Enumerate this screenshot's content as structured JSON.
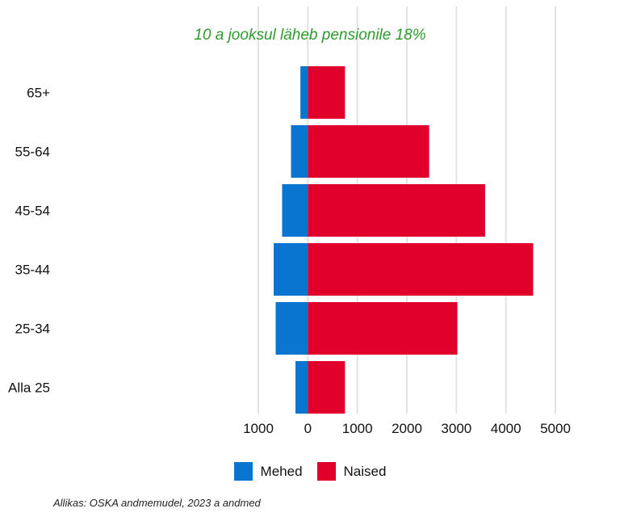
{
  "chart_data": {
    "type": "bar",
    "orientation": "horizontal",
    "subtitle": "10 a jooksul läheb pensionile 18%",
    "categories": [
      "Alla 25",
      "25-34",
      "35-44",
      "45-54",
      "55-64",
      "65+"
    ],
    "series": [
      {
        "name": "Mehed",
        "values": [
          -250,
          -650,
          -690,
          -520,
          -340,
          -150
        ],
        "color": "#0a74d1"
      },
      {
        "name": "Naised",
        "values": [
          750,
          3020,
          4550,
          3580,
          2450,
          750
        ],
        "color": "#e0002b"
      }
    ],
    "xlim": [
      -1000,
      5000
    ],
    "x_ticks": [
      -1000,
      0,
      1000,
      2000,
      3000,
      4000,
      5000
    ],
    "x_tick_labels": [
      "1000",
      "0",
      "1000",
      "2000",
      "3000",
      "4000",
      "5000"
    ],
    "grid": "vertical",
    "legend": "bottom",
    "source": "Allikas: OSKA andmemudel, 2023 a andmed"
  },
  "colors": {
    "subtitle": "#2e9a2e",
    "grid": "#e3e3e3",
    "text": "#111111"
  }
}
